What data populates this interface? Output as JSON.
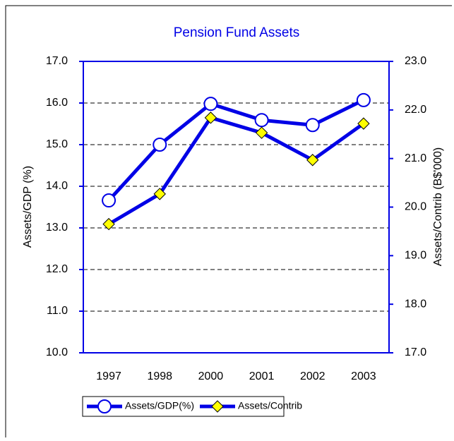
{
  "chart_data": {
    "type": "line",
    "title": "Pension Fund Assets",
    "categories": [
      "1997",
      "1998",
      "2000",
      "2001",
      "2002",
      "2003"
    ],
    "series": [
      {
        "name": "Assets/GDP(%)",
        "color": "#0000e6",
        "marker": "circle",
        "values": [
          13.66,
          15.0,
          15.98,
          15.59,
          15.47,
          16.07
        ]
      },
      {
        "name": "Assets/Contrib",
        "color": "#0000e6",
        "marker": "diamond",
        "marker_color": "#ffff00",
        "axis": "y2",
        "values": [
          19.65,
          20.27,
          21.84,
          21.53,
          20.97,
          21.72
        ]
      }
    ],
    "y_label": "Assets/GDP (%)",
    "y2_label": "Assets/Contrib (B$'000)",
    "ylim": [
      10,
      17
    ],
    "yticks": [
      {
        "value": 10,
        "label": "10.0"
      },
      {
        "value": 11,
        "label": "11.0"
      },
      {
        "value": 12,
        "label": "12.0"
      },
      {
        "value": 13,
        "label": "13.0"
      },
      {
        "value": 14,
        "label": "14.0"
      },
      {
        "value": 15,
        "label": "15.0"
      },
      {
        "value": 16,
        "label": "16.0"
      },
      {
        "value": 17,
        "label": "17.0"
      }
    ],
    "y2lim": [
      17,
      23
    ],
    "y2ticks": [
      {
        "value": 17,
        "label": "17.0"
      },
      {
        "value": 18,
        "label": "18.0"
      },
      {
        "value": 19,
        "label": "19.0"
      },
      {
        "value": 20,
        "label": "20.0"
      },
      {
        "value": 21,
        "label": "21.0"
      },
      {
        "value": 22,
        "label": "22.0"
      },
      {
        "value": 23,
        "label": "23.0"
      }
    ],
    "grid": true,
    "legend": "bottom"
  }
}
